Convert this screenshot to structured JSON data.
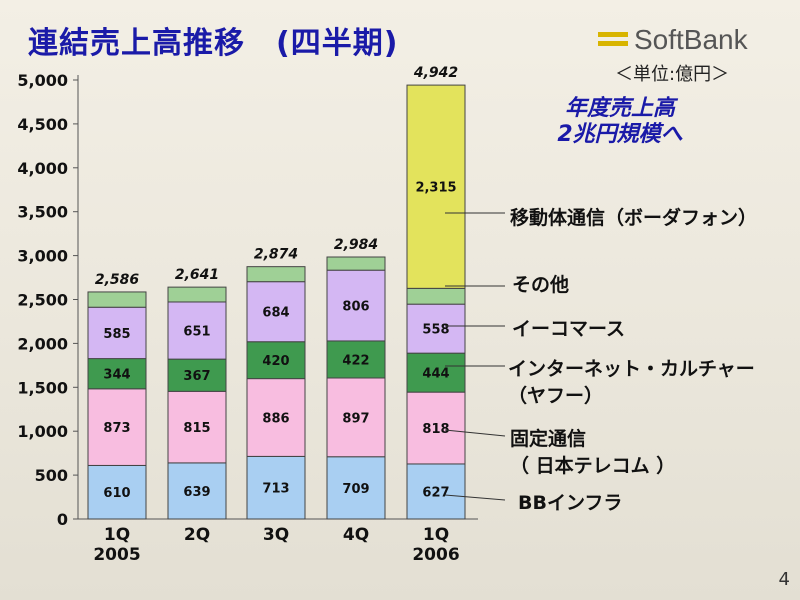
{
  "slide": {
    "title": "連結売上高推移　(四半期)",
    "logo_text": "SoftBank",
    "unit": "＜単位:億円＞",
    "annotation": [
      "年度売上高",
      "2兆円規模へ"
    ],
    "page_number": "4"
  },
  "chart_data": {
    "type": "bar",
    "stacked": true,
    "title": "連結売上高推移　(四半期)",
    "unit": "＜単位:億円＞",
    "ylim": [
      0,
      5000
    ],
    "yticks": [
      0,
      500,
      1000,
      1500,
      2000,
      2500,
      3000,
      3500,
      4000,
      4500,
      5000
    ],
    "ytick_labels": [
      "0",
      "500",
      "1,000",
      "1,500",
      "2,000",
      "2,500",
      "3,000",
      "3,500",
      "4,000",
      "4,500",
      "5,000"
    ],
    "categories": [
      {
        "q": "1Q",
        "year": "2005"
      },
      {
        "q": "2Q",
        "year": ""
      },
      {
        "q": "3Q",
        "year": ""
      },
      {
        "q": "4Q",
        "year": ""
      },
      {
        "q": "1Q",
        "year": "2006"
      }
    ],
    "totals": [
      2586,
      2641,
      2874,
      2984,
      4942
    ],
    "total_labels": [
      "2,586",
      "2,641",
      "2,874",
      "2,984",
      "4,942"
    ],
    "series": [
      {
        "name": "BBインフラ",
        "color": "#a9cff2",
        "values": [
          610,
          639,
          713,
          709,
          627
        ],
        "labels": [
          "610",
          "639",
          "713",
          "709",
          "627"
        ]
      },
      {
        "name": "固定通信（日本テレコム）",
        "color": "#f8bde0",
        "values": [
          873,
          815,
          886,
          897,
          818
        ],
        "labels": [
          "873",
          "815",
          "886",
          "897",
          "818"
        ]
      },
      {
        "name": "インターネット・カルチャー（ヤフー）",
        "color": "#3f9a4f",
        "values": [
          344,
          367,
          420,
          422,
          444
        ],
        "labels": [
          "344",
          "367",
          "420",
          "422",
          "444"
        ]
      },
      {
        "name": "イーコマース",
        "color": "#d4b7f3",
        "values": [
          585,
          651,
          684,
          806,
          558
        ],
        "labels": [
          "585",
          "651",
          "684",
          "806",
          "558"
        ]
      },
      {
        "name": "その他",
        "color": "#9fd096",
        "values": [
          174,
          169,
          171,
          150,
          180
        ],
        "labels": [
          "",
          "",
          "",
          "",
          ""
        ]
      },
      {
        "name": "移動体通信（ボーダフォン）",
        "color": "#e3e35c",
        "values": [
          0,
          0,
          0,
          0,
          2315
        ],
        "labels": [
          "",
          "",
          "",
          "",
          "2,315"
        ]
      }
    ],
    "legend": [
      {
        "lines": [
          "移動体通信（ボーダフォン）"
        ]
      },
      {
        "lines": [
          "その他"
        ]
      },
      {
        "lines": [
          "イーコマース"
        ]
      },
      {
        "lines": [
          "インターネット・カルチャー",
          "（ヤフー）"
        ]
      },
      {
        "lines": [
          "固定通信",
          "（ 日本テレコム ）"
        ]
      },
      {
        "lines": [
          "BBインフラ"
        ]
      }
    ]
  }
}
